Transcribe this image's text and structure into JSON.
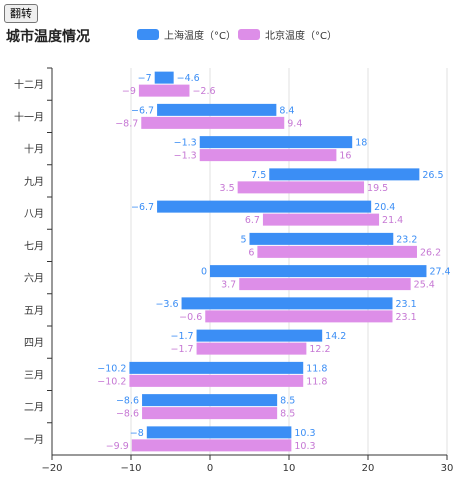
{
  "toolbar": {
    "flip_label": "翻转"
  },
  "chart_data": {
    "type": "bar",
    "orientation": "horizontal",
    "title": "城市温度情况",
    "legend_position": "top-center",
    "categories": [
      "一月",
      "二月",
      "三月",
      "四月",
      "五月",
      "六月",
      "七月",
      "八月",
      "九月",
      "十月",
      "十一月",
      "十二月"
    ],
    "series": [
      {
        "name": "上海温度（°C）",
        "color": "#3b8ef5",
        "ranges": [
          [
            -8,
            10.3
          ],
          [
            -8.6,
            8.5
          ],
          [
            -10.2,
            11.8
          ],
          [
            -1.7,
            14.2
          ],
          [
            -3.6,
            23.1
          ],
          [
            0,
            27.4
          ],
          [
            5,
            23.2
          ],
          [
            -6.7,
            20.4
          ],
          [
            7.5,
            26.5
          ],
          [
            -1.3,
            18
          ],
          [
            -6.7,
            8.4
          ],
          [
            -7,
            -4.6
          ]
        ]
      },
      {
        "name": "北京温度（°C）",
        "color": "#dd8ee8",
        "ranges": [
          [
            -9.9,
            10.3
          ],
          [
            -8.6,
            8.5
          ],
          [
            -10.2,
            11.8
          ],
          [
            -1.7,
            12.2
          ],
          [
            -0.6,
            23.1
          ],
          [
            3.7,
            25.4
          ],
          [
            6,
            26.2
          ],
          [
            6.7,
            21.4
          ],
          [
            3.5,
            19.5
          ],
          [
            -1.3,
            16
          ],
          [
            -8.7,
            9.4
          ],
          [
            -9,
            -2.6
          ]
        ]
      }
    ],
    "xlim": [
      -20,
      30
    ],
    "xticks": [
      "−20",
      "−10",
      "0",
      "10",
      "20",
      "30"
    ],
    "xtick_values": [
      -20,
      -10,
      0,
      10,
      20,
      30
    ],
    "grid": true,
    "label_color_series1": "#3b8ef5",
    "label_color_series2": "#c678d4"
  }
}
